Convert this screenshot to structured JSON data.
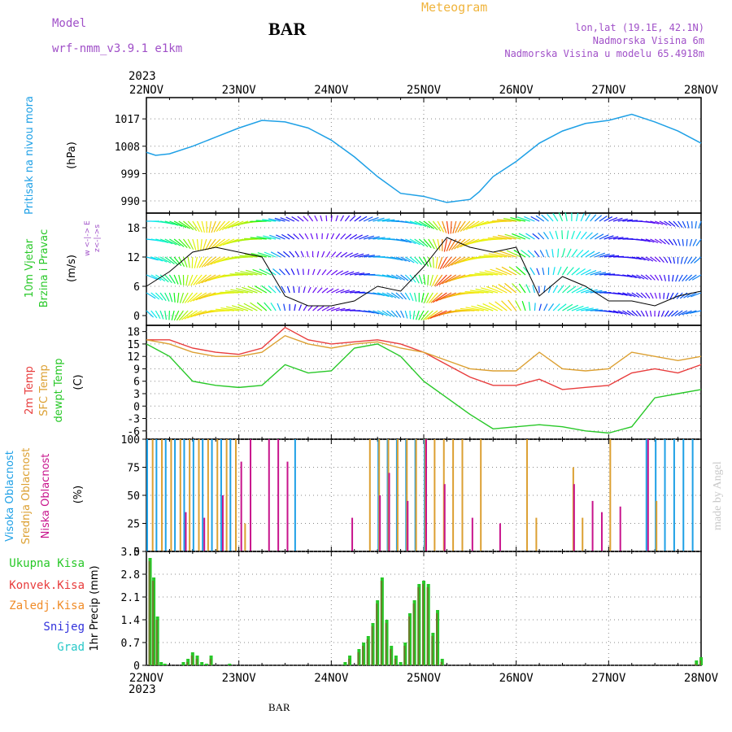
{
  "header": {
    "model_label": "Model",
    "model_name": "wrf-nmm_v3.9.1 e1km",
    "station": "BAR",
    "product": "Meteogram",
    "coords": "lon,lat (19.1E, 42.1N)",
    "elevation": "Nadmorska Visina 6m",
    "model_elevation": "Nadmorska Visina u modelu 65.4918m",
    "year": "2023",
    "footer_station": "BAR",
    "credit": "made by Angel"
  },
  "colors": {
    "pressure": "#1ea0e6",
    "temp2m": "#e83c3c",
    "sfc": "#dca032",
    "dewpt": "#28c828",
    "cloud_high": "#1ea0e6",
    "cloud_mid": "#dca032",
    "cloud_low": "#c8148c",
    "precip_total": "#28c828",
    "precip_conv": "#e83c3c",
    "precip_snow": "#3232dc",
    "precip_grad": "#28c8c8",
    "precip_frz": "#f08c28"
  },
  "chart_data": [
    {
      "type": "line",
      "name": "pressure",
      "title": "Pritisak na nivou mora",
      "ylabel": "(hPa)",
      "x_ticks": [
        "22NOV",
        "23NOV",
        "24NOV",
        "25NOV",
        "26NOV",
        "27NOV",
        "28NOV"
      ],
      "ylim": [
        986,
        1024
      ],
      "y_ticks": [
        990,
        999,
        1008,
        1017
      ],
      "series": [
        {
          "name": "",
          "x": [
            0,
            0.1,
            0.25,
            0.5,
            0.75,
            1.0,
            1.25,
            1.5,
            1.75,
            2.0,
            2.25,
            2.5,
            2.75,
            3.0,
            3.25,
            3.5,
            3.6,
            3.75,
            4.0,
            4.25,
            4.5,
            4.75,
            5.0,
            5.25,
            5.5,
            5.75,
            6.0
          ],
          "values": [
            1006,
            1005,
            1005.5,
            1008,
            1011,
            1014,
            1016.5,
            1016,
            1014,
            1010,
            1004.5,
            998,
            992.5,
            991.5,
            989.5,
            990.5,
            993,
            998,
            1003,
            1009,
            1013,
            1015.5,
            1016.5,
            1018.5,
            1016,
            1013,
            1009
          ]
        }
      ]
    },
    {
      "type": "line",
      "name": "wind",
      "title": "10m Vjetar Brzina i Pravac",
      "ylabel": "(m/s)",
      "compass": "w <-|-> E  z<-|->s",
      "ylim": [
        -2,
        21
      ],
      "y_ticks": [
        0,
        6,
        12,
        18
      ],
      "series": [
        {
          "name": "",
          "x": [
            0,
            0.25,
            0.5,
            0.75,
            1.0,
            1.25,
            1.5,
            1.75,
            2.0,
            2.25,
            2.5,
            2.75,
            3.0,
            3.25,
            3.5,
            3.75,
            4.0,
            4.25,
            4.5,
            4.75,
            5.0,
            5.25,
            5.5,
            5.75,
            6.0
          ],
          "values": [
            6,
            9,
            13,
            14,
            13,
            12,
            4,
            2,
            2,
            3,
            6,
            5,
            10,
            16,
            14,
            13,
            14,
            4,
            8,
            6,
            3,
            3,
            2,
            4,
            5
          ]
        }
      ]
    },
    {
      "type": "line",
      "name": "temperature",
      "title": [
        "2m Temp",
        "SFC Temp",
        "dewpt Temp"
      ],
      "ylabel": "(C)",
      "ylim": [
        -8,
        19.5
      ],
      "y_ticks": [
        -6,
        -3,
        0,
        3,
        6,
        9,
        12,
        15,
        18
      ],
      "x": [
        0,
        0.25,
        0.5,
        0.75,
        1.0,
        1.25,
        1.5,
        1.75,
        2.0,
        2.25,
        2.5,
        2.75,
        3.0,
        3.25,
        3.5,
        3.75,
        4.0,
        4.25,
        4.5,
        4.75,
        5.0,
        5.25,
        5.5,
        5.75,
        6.0
      ],
      "series": [
        {
          "name": "2m Temp",
          "values": [
            16,
            16,
            14,
            13,
            12.5,
            14,
            19,
            16,
            15,
            15.5,
            16,
            15,
            13,
            10,
            7,
            5,
            5,
            6.5,
            4,
            4.5,
            5,
            8,
            9,
            8,
            10
          ]
        },
        {
          "name": "SFC Temp",
          "values": [
            16,
            15,
            13,
            12,
            12,
            13,
            17,
            15,
            14,
            15,
            15.5,
            14,
            13,
            11,
            9,
            8.5,
            8.5,
            13,
            9,
            8.5,
            9,
            13,
            12,
            11,
            12
          ]
        },
        {
          "name": "dewpt Temp",
          "values": [
            15,
            12,
            6,
            5,
            4.5,
            5,
            10,
            8,
            8.5,
            14,
            15,
            12,
            6,
            2,
            -2,
            -5.5,
            -5,
            -4.5,
            -5,
            -6,
            -6.5,
            -5,
            2,
            3,
            4
          ]
        }
      ]
    },
    {
      "type": "bar",
      "name": "clouds",
      "title": [
        "Visoka Oblacnost",
        "Srednja Oblacnost",
        "Niska Oblacnost"
      ],
      "ylabel": "(%)",
      "ylim": [
        0,
        100
      ],
      "y_ticks": [
        0,
        25,
        50,
        75,
        100
      ],
      "series": [
        {
          "name": "Visoka Oblacnost",
          "x": [
            0,
            0.1,
            0.2,
            0.3,
            0.4,
            0.5,
            0.6,
            0.7,
            0.8,
            0.9,
            1.6,
            2.5,
            2.6,
            2.7,
            2.8,
            2.9,
            3.0,
            5.4,
            5.5,
            5.6,
            5.7,
            5.8,
            5.9
          ],
          "values": [
            100,
            100,
            100,
            100,
            100,
            100,
            100,
            100,
            100,
            100,
            100,
            100,
            100,
            100,
            100,
            100,
            100,
            100,
            100,
            100,
            100,
            100,
            100
          ]
        },
        {
          "name": "Srednja Oblacnost",
          "x": [
            0.05,
            0.15,
            0.25,
            0.35,
            0.45,
            0.55,
            0.65,
            0.75,
            0.85,
            0.95,
            1.05,
            2.4,
            2.5,
            2.6,
            2.7,
            2.8,
            2.9,
            3.0,
            3.1,
            3.2,
            3.3,
            3.4,
            3.6,
            4.1,
            4.2,
            4.6,
            4.7,
            5.0,
            5.5
          ],
          "values": [
            100,
            100,
            100,
            100,
            100,
            100,
            100,
            100,
            100,
            100,
            25,
            100,
            100,
            100,
            100,
            100,
            100,
            100,
            100,
            100,
            100,
            100,
            100,
            100,
            30,
            75,
            30,
            100,
            45
          ]
        },
        {
          "name": "Niska Oblacnost",
          "x": [
            0.4,
            0.6,
            0.8,
            1.0,
            1.1,
            1.3,
            1.4,
            1.5,
            2.2,
            2.5,
            2.6,
            2.8,
            3.0,
            3.2,
            3.5,
            3.8,
            4.6,
            4.8,
            4.9,
            5.1,
            5.4
          ],
          "values": [
            35,
            30,
            50,
            80,
            100,
            100,
            100,
            80,
            30,
            50,
            70,
            45,
            100,
            60,
            30,
            25,
            60,
            45,
            35,
            40,
            100
          ]
        }
      ]
    },
    {
      "type": "bar",
      "name": "precip",
      "title": [
        "Ukupna Kisa",
        "Konvek.Kisa",
        "Zaledj.Kisa",
        "Snijeg",
        "Grad"
      ],
      "ylabel": "1hr Precip (mm)",
      "ylim": [
        0,
        3.5
      ],
      "y_ticks": [
        0,
        0.7,
        1.4,
        2.1,
        2.8,
        3.5
      ],
      "series": [
        {
          "name": "Ukupna Kisa",
          "x": [
            0.04,
            0.08,
            0.12,
            0.16,
            0.2,
            0.4,
            0.45,
            0.5,
            0.55,
            0.6,
            0.65,
            0.7,
            0.9,
            2.15,
            2.2,
            2.3,
            2.35,
            2.4,
            2.45,
            2.5,
            2.55,
            2.6,
            2.65,
            2.7,
            2.75,
            2.8,
            2.85,
            2.9,
            2.95,
            3.0,
            3.05,
            3.1,
            3.15,
            3.2,
            5.95,
            6.0
          ],
          "values": [
            3.3,
            2.7,
            1.5,
            0.1,
            0.05,
            0.1,
            0.2,
            0.4,
            0.3,
            0.1,
            0.05,
            0.3,
            0.05,
            0.1,
            0.3,
            0.5,
            0.7,
            0.9,
            1.3,
            2.0,
            2.7,
            1.4,
            0.6,
            0.3,
            0.1,
            0.7,
            1.6,
            2.0,
            2.5,
            2.6,
            2.5,
            1.0,
            1.7,
            0.2,
            0.15,
            0.25
          ]
        }
      ]
    }
  ]
}
